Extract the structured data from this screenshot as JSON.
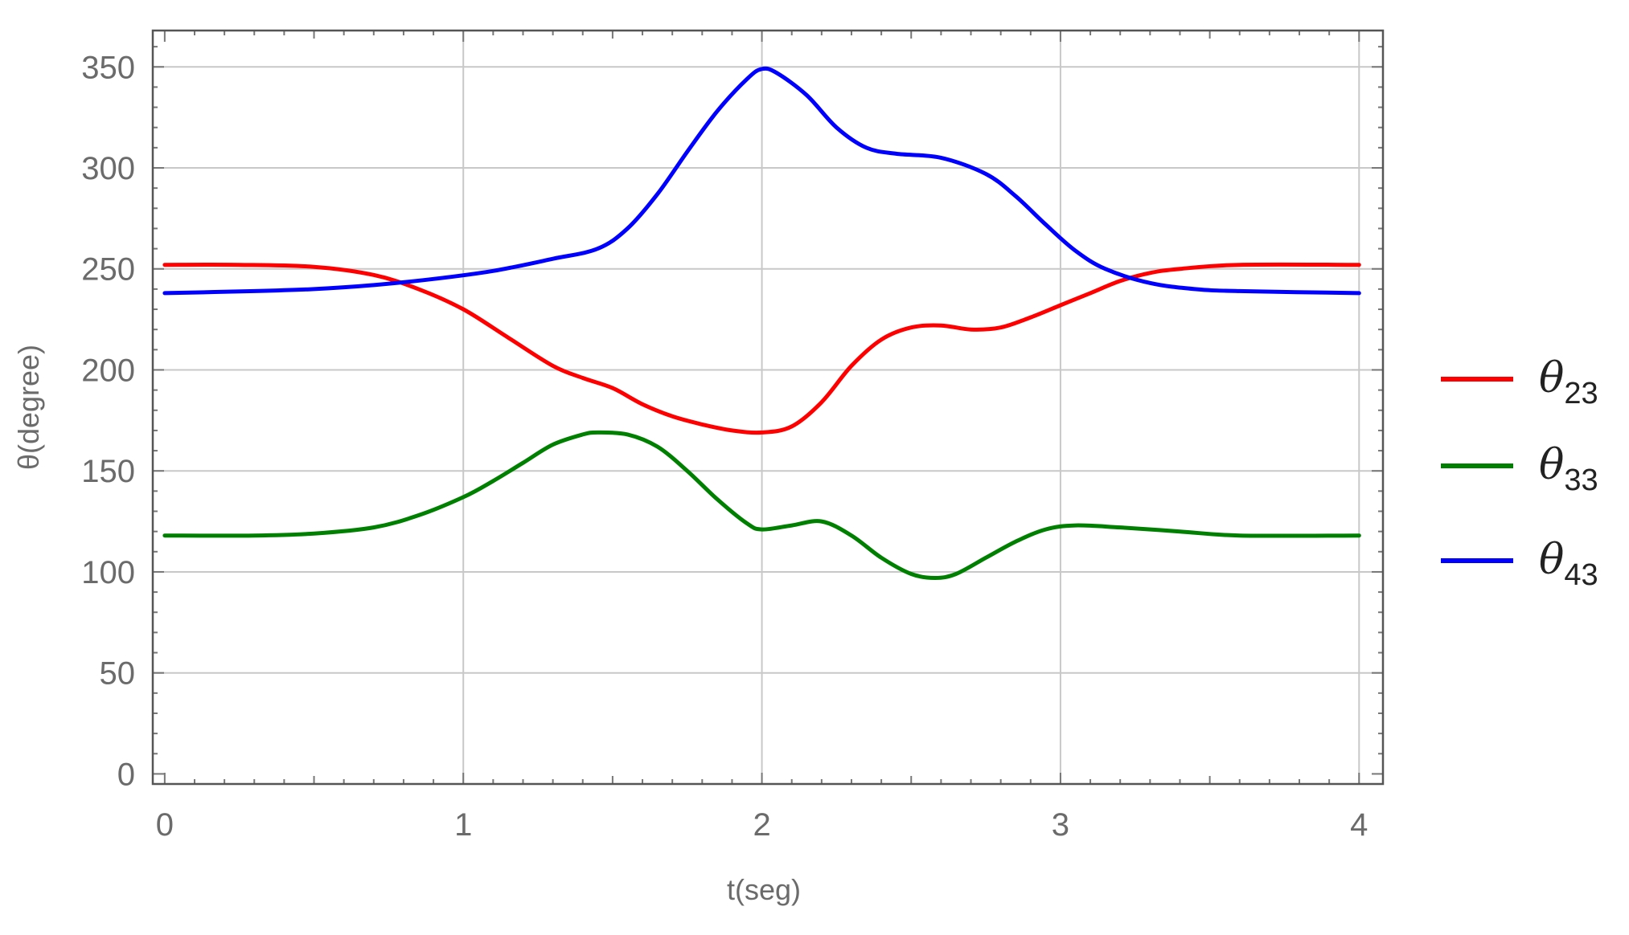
{
  "chart_data": {
    "type": "line",
    "title": "",
    "xlabel": "t(seg)",
    "ylabel": "θ(degree)",
    "xlim": [
      -0.04,
      4.08
    ],
    "ylim": [
      -5,
      368
    ],
    "xticks": [
      0,
      1,
      2,
      3,
      4
    ],
    "yticks": [
      0,
      50,
      100,
      150,
      200,
      250,
      300,
      350
    ],
    "xtick_labels": [
      "0",
      "1",
      "2",
      "3",
      "4"
    ],
    "ytick_labels": [
      "0",
      "50",
      "100",
      "150",
      "200",
      "250",
      "300",
      "350"
    ],
    "grid": true,
    "legend_position": "right",
    "series": [
      {
        "name_symbol": "θ",
        "name_sub": "23",
        "color": "#ff0000",
        "points": [
          [
            0,
            252
          ],
          [
            0.25,
            252
          ],
          [
            0.5,
            251
          ],
          [
            0.7,
            247
          ],
          [
            0.85,
            240
          ],
          [
            1.0,
            230
          ],
          [
            1.15,
            216
          ],
          [
            1.3,
            202
          ],
          [
            1.4,
            196
          ],
          [
            1.5,
            191
          ],
          [
            1.6,
            183
          ],
          [
            1.7,
            177
          ],
          [
            1.8,
            173
          ],
          [
            1.9,
            170
          ],
          [
            2.0,
            169
          ],
          [
            2.1,
            172
          ],
          [
            2.2,
            184
          ],
          [
            2.3,
            202
          ],
          [
            2.4,
            215
          ],
          [
            2.5,
            221
          ],
          [
            2.6,
            222
          ],
          [
            2.7,
            220
          ],
          [
            2.8,
            221
          ],
          [
            2.9,
            226
          ],
          [
            3.0,
            232
          ],
          [
            3.1,
            238
          ],
          [
            3.2,
            244
          ],
          [
            3.3,
            248
          ],
          [
            3.4,
            250
          ],
          [
            3.6,
            252
          ],
          [
            4.0,
            252
          ]
        ]
      },
      {
        "name_symbol": "θ",
        "name_sub": "33",
        "color": "#008000",
        "points": [
          [
            0,
            118
          ],
          [
            0.3,
            118
          ],
          [
            0.5,
            119
          ],
          [
            0.7,
            122
          ],
          [
            0.85,
            128
          ],
          [
            1.0,
            137
          ],
          [
            1.1,
            145
          ],
          [
            1.2,
            154
          ],
          [
            1.3,
            163
          ],
          [
            1.4,
            168
          ],
          [
            1.45,
            169
          ],
          [
            1.55,
            168
          ],
          [
            1.65,
            162
          ],
          [
            1.75,
            150
          ],
          [
            1.85,
            136
          ],
          [
            1.95,
            124
          ],
          [
            2.0,
            121
          ],
          [
            2.1,
            123
          ],
          [
            2.2,
            125
          ],
          [
            2.3,
            118
          ],
          [
            2.4,
            107
          ],
          [
            2.5,
            99
          ],
          [
            2.58,
            97
          ],
          [
            2.65,
            99
          ],
          [
            2.75,
            107
          ],
          [
            2.85,
            115
          ],
          [
            2.95,
            121
          ],
          [
            3.05,
            123
          ],
          [
            3.2,
            122
          ],
          [
            3.4,
            120
          ],
          [
            3.6,
            118
          ],
          [
            4.0,
            118
          ]
        ]
      },
      {
        "name_symbol": "θ",
        "name_sub": "43",
        "color": "#0000ff",
        "points": [
          [
            0,
            238
          ],
          [
            0.3,
            239
          ],
          [
            0.5,
            240
          ],
          [
            0.7,
            242
          ],
          [
            0.9,
            245
          ],
          [
            1.1,
            249
          ],
          [
            1.3,
            255
          ],
          [
            1.45,
            260
          ],
          [
            1.55,
            270
          ],
          [
            1.65,
            287
          ],
          [
            1.75,
            308
          ],
          [
            1.85,
            328
          ],
          [
            1.95,
            344
          ],
          [
            2.0,
            349
          ],
          [
            2.05,
            347
          ],
          [
            2.15,
            336
          ],
          [
            2.25,
            320
          ],
          [
            2.35,
            310
          ],
          [
            2.45,
            307
          ],
          [
            2.6,
            305
          ],
          [
            2.75,
            297
          ],
          [
            2.85,
            286
          ],
          [
            2.95,
            272
          ],
          [
            3.05,
            259
          ],
          [
            3.15,
            250
          ],
          [
            3.3,
            243
          ],
          [
            3.45,
            240
          ],
          [
            3.6,
            239
          ],
          [
            4.0,
            238
          ]
        ]
      }
    ]
  }
}
